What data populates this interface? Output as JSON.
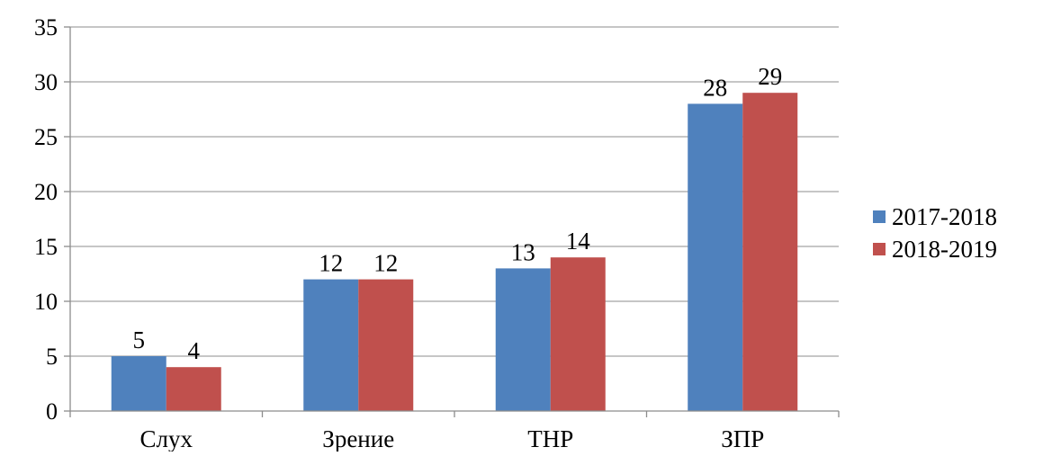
{
  "chart_data": {
    "type": "bar",
    "title": "",
    "xlabel": "",
    "ylabel": "",
    "categories": [
      "Слух",
      "Зрение",
      "ТНР",
      "ЗПР"
    ],
    "series": [
      {
        "name": "2017-2018",
        "values": [
          5,
          12,
          13,
          28
        ],
        "color": "#4f81bd"
      },
      {
        "name": "2018-2019",
        "values": [
          4,
          12,
          14,
          29
        ],
        "color": "#c0504d"
      }
    ],
    "ylim": [
      0,
      35
    ],
    "yticks": [
      0,
      5,
      10,
      15,
      20,
      25,
      30,
      35
    ],
    "grid": true,
    "legend": "right",
    "data_labels": true
  }
}
